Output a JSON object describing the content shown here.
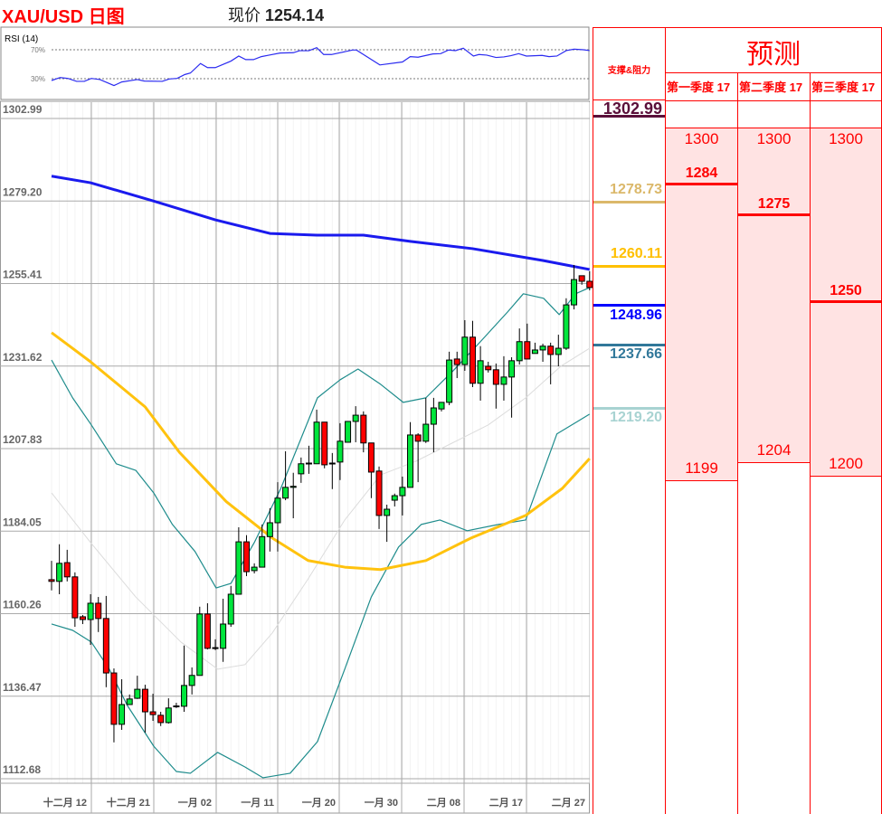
{
  "header": {
    "title": "XAU/USD 日图",
    "price_label": "现价",
    "price_value": "1254.14"
  },
  "chart_data": {
    "type": "candlestick",
    "title": "XAU/USD 日图",
    "y_ticks": [
      "1302.99",
      "1279.20",
      "1255.41",
      "1231.62",
      "1207.83",
      "1184.05",
      "1160.26",
      "1136.47",
      "1112.68"
    ],
    "ylim": [
      1112.68,
      1302.99
    ],
    "x_ticks": [
      "十二月 12",
      "十二月 21",
      "一月 02",
      "一月 11",
      "一月 20",
      "一月 30",
      "二月 08",
      "二月 17",
      "二月 27"
    ],
    "grid": true,
    "colors": {
      "up": "#00e63c",
      "down": "#ff0000",
      "ma_slow": "#1a1aee",
      "ma_fast": "#ffc20e",
      "bollinger": "#1e8c8c",
      "bollinger_mid": "#dcdcdc"
    },
    "ohlc": [
      [
        1168.5,
        1173.9,
        1165.4,
        1168.0
      ],
      [
        1168.0,
        1178.7,
        1164.3,
        1173.2
      ],
      [
        1173.4,
        1177.1,
        1168.0,
        1169.3
      ],
      [
        1169.3,
        1170.6,
        1154.9,
        1157.5
      ],
      [
        1157.8,
        1158.3,
        1155.7,
        1157.0
      ],
      [
        1157.0,
        1164.3,
        1149.7,
        1161.7
      ],
      [
        1161.7,
        1163.5,
        1153.4,
        1157.3
      ],
      [
        1157.3,
        1163.8,
        1137.5,
        1141.6
      ],
      [
        1141.6,
        1142.9,
        1121.6,
        1126.8
      ],
      [
        1126.8,
        1139.8,
        1125.2,
        1132.5
      ],
      [
        1132.5,
        1135.4,
        1132.5,
        1134.1
      ],
      [
        1134.3,
        1140.8,
        1134.1,
        1136.9
      ],
      [
        1136.9,
        1138.2,
        1124.4,
        1130.4
      ],
      [
        1130.4,
        1135.6,
        1127.8,
        1129.6
      ],
      [
        1129.4,
        1130.4,
        1126.3,
        1127.3
      ],
      [
        1127.3,
        1134.3,
        1127.0,
        1131.5
      ],
      [
        1132.0,
        1133.0,
        1131.5,
        1132.1
      ],
      [
        1132.0,
        1149.5,
        1130.4,
        1138.0
      ],
      [
        1138.0,
        1143.2,
        1135.4,
        1140.9
      ],
      [
        1140.9,
        1160.7,
        1140.9,
        1158.6
      ],
      [
        1158.6,
        1161.7,
        1148.4,
        1148.7
      ],
      [
        1148.7,
        1151.3,
        1148.2,
        1148.9
      ],
      [
        1148.7,
        1163.0,
        1144.8,
        1155.7
      ],
      [
        1155.7,
        1166.7,
        1154.9,
        1164.3
      ],
      [
        1164.3,
        1183.6,
        1164.3,
        1179.4
      ],
      [
        1179.4,
        1181.3,
        1169.5,
        1170.8
      ],
      [
        1171.1,
        1173.2,
        1170.3,
        1172.1
      ],
      [
        1172.1,
        1184.4,
        1172.1,
        1180.9
      ],
      [
        1180.9,
        1189.1,
        1176.6,
        1184.9
      ],
      [
        1184.9,
        1196.6,
        1176.6,
        1192.0
      ],
      [
        1192.0,
        1205.5,
        1191.4,
        1195.1
      ],
      [
        1195.1,
        1199.3,
        1186.2,
        1195.4
      ],
      [
        1199.0,
        1203.7,
        1196.4,
        1201.9
      ],
      [
        1201.9,
        1207.1,
        1199.0,
        1202.1
      ],
      [
        1201.9,
        1217.5,
        1201.9,
        1213.9
      ],
      [
        1213.9,
        1213.9,
        1200.6,
        1201.6
      ],
      [
        1201.9,
        1205.0,
        1194.6,
        1202.1
      ],
      [
        1202.4,
        1213.6,
        1197.2,
        1208.4
      ],
      [
        1208.1,
        1214.1,
        1208.1,
        1214.1
      ],
      [
        1214.1,
        1218.5,
        1208.1,
        1215.9
      ],
      [
        1215.9,
        1217.0,
        1205.2,
        1207.9
      ],
      [
        1207.9,
        1207.9,
        1192.0,
        1199.5
      ],
      [
        1199.8,
        1201.1,
        1183.1,
        1187.0
      ],
      [
        1187.0,
        1190.1,
        1179.4,
        1188.8
      ],
      [
        1191.4,
        1193.3,
        1189.6,
        1192.7
      ],
      [
        1192.7,
        1198.2,
        1187.0,
        1195.1
      ],
      [
        1195.1,
        1213.9,
        1195.1,
        1210.2
      ],
      [
        1210.2,
        1210.7,
        1196.6,
        1208.4
      ],
      [
        1208.4,
        1220.9,
        1207.9,
        1213.3
      ],
      [
        1213.3,
        1220.9,
        1205.2,
        1218.0
      ],
      [
        1217.7,
        1219.6,
        1217.0,
        1219.6
      ],
      [
        1219.6,
        1234.2,
        1218.8,
        1231.8
      ],
      [
        1232.1,
        1234.2,
        1226.6,
        1230.5
      ],
      [
        1230.5,
        1243.3,
        1228.7,
        1238.4
      ],
      [
        1238.4,
        1243.1,
        1224.0,
        1225.1
      ],
      [
        1225.1,
        1235.8,
        1220.1,
        1231.6
      ],
      [
        1230.0,
        1231.3,
        1228.2,
        1229.0
      ],
      [
        1229.0,
        1230.8,
        1217.8,
        1224.8
      ],
      [
        1224.8,
        1232.9,
        1220.1,
        1226.9
      ],
      [
        1226.9,
        1232.6,
        1215.2,
        1231.6
      ],
      [
        1231.6,
        1240.9,
        1230.5,
        1237.1
      ],
      [
        1237.1,
        1242.3,
        1232.1,
        1232.1
      ],
      [
        1233.7,
        1236.8,
        1233.7,
        1234.7
      ],
      [
        1234.7,
        1236.5,
        1231.3,
        1235.8
      ],
      [
        1235.8,
        1236.8,
        1224.8,
        1233.4
      ],
      [
        1233.4,
        1239.1,
        1230.0,
        1235.2
      ],
      [
        1235.2,
        1249.6,
        1234.7,
        1247.7
      ],
      [
        1247.7,
        1259.2,
        1246.4,
        1255.0
      ],
      [
        1256.1,
        1256.1,
        1253.5,
        1254.5
      ],
      [
        1254.5,
        1257.4,
        1251.9,
        1252.7
      ]
    ],
    "ma_slow": [
      [
        0,
        1284.8
      ],
      [
        5,
        1282.9
      ],
      [
        13,
        1277.7
      ],
      [
        21,
        1272.2
      ],
      [
        28,
        1268.3
      ],
      [
        34,
        1267.8
      ],
      [
        40,
        1267.8
      ],
      [
        46,
        1266.0
      ],
      [
        54,
        1263.9
      ],
      [
        63,
        1260.5
      ],
      [
        69,
        1257.9
      ]
    ],
    "ma_fast": [
      [
        0,
        1239.7
      ],
      [
        5,
        1231.3
      ],
      [
        12,
        1218.3
      ],
      [
        16.4,
        1205.2
      ],
      [
        22.4,
        1191.0
      ],
      [
        28.3,
        1180.5
      ],
      [
        32.9,
        1174.0
      ],
      [
        37.6,
        1172.1
      ],
      [
        42.2,
        1171.4
      ],
      [
        48,
        1174.0
      ],
      [
        53.8,
        1180.5
      ],
      [
        60.8,
        1187.0
      ],
      [
        65.5,
        1194.8
      ],
      [
        69,
        1203.4
      ]
    ],
    "bollinger_upper": [
      [
        0,
        1231.8
      ],
      [
        2.7,
        1220.9
      ],
      [
        5.1,
        1213.1
      ],
      [
        8.3,
        1201.9
      ],
      [
        10.8,
        1200.0
      ],
      [
        13.1,
        1193.5
      ],
      [
        15.5,
        1184.4
      ],
      [
        18.4,
        1176.6
      ],
      [
        21.1,
        1166.1
      ],
      [
        23,
        1167.4
      ],
      [
        26,
        1179.2
      ],
      [
        29.4,
        1194.8
      ],
      [
        34.1,
        1220.9
      ],
      [
        37,
        1226.1
      ],
      [
        39.3,
        1229.2
      ],
      [
        42.2,
        1224.8
      ],
      [
        45.1,
        1219.6
      ],
      [
        48,
        1220.9
      ],
      [
        51.5,
        1228.7
      ],
      [
        55,
        1237.1
      ],
      [
        58.5,
        1245.7
      ],
      [
        60.5,
        1250.9
      ],
      [
        63.1,
        1249.6
      ],
      [
        65.1,
        1244.9
      ],
      [
        67.2,
        1250.9
      ],
      [
        69,
        1252.7
      ]
    ],
    "bollinger_lower": [
      [
        0,
        1155.7
      ],
      [
        2.7,
        1153.9
      ],
      [
        5.1,
        1150.5
      ],
      [
        7.4,
        1142.7
      ],
      [
        9.7,
        1132.3
      ],
      [
        13.1,
        1120.5
      ],
      [
        16,
        1113.2
      ],
      [
        17.8,
        1112.7
      ],
      [
        21.3,
        1118.7
      ],
      [
        24.8,
        1114.5
      ],
      [
        27.1,
        1111.4
      ],
      [
        30.6,
        1112.7
      ],
      [
        34.1,
        1121.8
      ],
      [
        37.6,
        1142.7
      ],
      [
        41,
        1163.5
      ],
      [
        44.5,
        1177.9
      ],
      [
        47.4,
        1184.4
      ],
      [
        49.8,
        1185.7
      ],
      [
        53.3,
        1182.6
      ],
      [
        57.3,
        1184.4
      ],
      [
        60.8,
        1185.7
      ],
      [
        64.8,
        1210.5
      ],
      [
        69,
        1216.2
      ]
    ],
    "bollinger_mid": [
      [
        0,
        1193.5
      ],
      [
        5,
        1179.2
      ],
      [
        10.8,
        1163.5
      ],
      [
        16.6,
        1150.5
      ],
      [
        21.3,
        1142.7
      ],
      [
        24.8,
        1144.0
      ],
      [
        28.3,
        1153.1
      ],
      [
        32.9,
        1168.7
      ],
      [
        37.6,
        1185.7
      ],
      [
        42.2,
        1198.7
      ],
      [
        46.7,
        1202.6
      ],
      [
        51.4,
        1207.9
      ],
      [
        56,
        1213.1
      ],
      [
        60.8,
        1220.9
      ],
      [
        65.3,
        1230.0
      ],
      [
        69,
        1235.2
      ]
    ],
    "rsi": {
      "label": "RSI (14)",
      "levels": [
        "70%",
        "30%"
      ],
      "values": [
        [
          0,
          27.5
        ],
        [
          1.1,
          31.6
        ],
        [
          2.1,
          30.4
        ],
        [
          3.2,
          26.3
        ],
        [
          4.2,
          26.3
        ],
        [
          5.1,
          30.4
        ],
        [
          6.2,
          28.8
        ],
        [
          8,
          20.5
        ],
        [
          9,
          25.5
        ],
        [
          11,
          28.8
        ],
        [
          11.9,
          26.7
        ],
        [
          14.2,
          26.3
        ],
        [
          15.1,
          29.6
        ],
        [
          16.1,
          30.4
        ],
        [
          17.1,
          35.8
        ],
        [
          17.8,
          37.8
        ],
        [
          19.1,
          51.0
        ],
        [
          20,
          45.3
        ],
        [
          21,
          45.3
        ],
        [
          23,
          54.3
        ],
        [
          24,
          61.3
        ],
        [
          24.9,
          56.4
        ],
        [
          25.9,
          56.4
        ],
        [
          26.9,
          60.5
        ],
        [
          27.9,
          62.6
        ],
        [
          29.3,
          65.5
        ],
        [
          31,
          65.9
        ],
        [
          31.8,
          68.7
        ],
        [
          33,
          68.7
        ],
        [
          34,
          72.9
        ],
        [
          34.9,
          63.4
        ],
        [
          35.9,
          63.4
        ],
        [
          38.6,
          69.6
        ],
        [
          39.1,
          69.6
        ],
        [
          42.1,
          49.0
        ],
        [
          45,
          53.1
        ],
        [
          46,
          60.5
        ],
        [
          47,
          59.7
        ],
        [
          48.9,
          64.2
        ],
        [
          49.9,
          64.6
        ],
        [
          50.9,
          69.6
        ],
        [
          51.8,
          68.8
        ],
        [
          52.8,
          72.1
        ],
        [
          54.1,
          61.3
        ],
        [
          54.8,
          63.4
        ],
        [
          55.8,
          62.6
        ],
        [
          57,
          59.3
        ],
        [
          58,
          60.1
        ],
        [
          58.9,
          61.8
        ],
        [
          59.9,
          64.6
        ],
        [
          60.9,
          61.3
        ],
        [
          62.9,
          62.2
        ],
        [
          63.8,
          60.5
        ],
        [
          64.8,
          61.3
        ],
        [
          66,
          68.8
        ],
        [
          67,
          70.8
        ],
        [
          68.2,
          70.0
        ],
        [
          69,
          68.8
        ]
      ]
    }
  },
  "sr_table": {
    "header": "支撑&阻力",
    "levels": [
      {
        "value": "1302.99",
        "color": "#5a0f3a"
      },
      {
        "value": "1278.73",
        "color": "#dbb86a"
      },
      {
        "value": "1260.11",
        "color": "#ffc000"
      },
      {
        "value": "1248.96",
        "color": "#0000ff"
      },
      {
        "value": "1237.66",
        "color": "#31789a"
      },
      {
        "value": "1219.20",
        "color": "#a8d3d2"
      }
    ]
  },
  "forecast": {
    "title": "预测",
    "quarters": [
      {
        "label": "第一季度 17",
        "high": "1300",
        "target": "1284",
        "low": "1199"
      },
      {
        "label": "第二季度 17",
        "high": "1300",
        "target": "1275",
        "low": "1204"
      },
      {
        "label": "第三季度 17",
        "high": "1300",
        "target": "1250",
        "low": "1200"
      }
    ],
    "fill_color": "#ffe3e3",
    "accent": "#ff0000"
  }
}
